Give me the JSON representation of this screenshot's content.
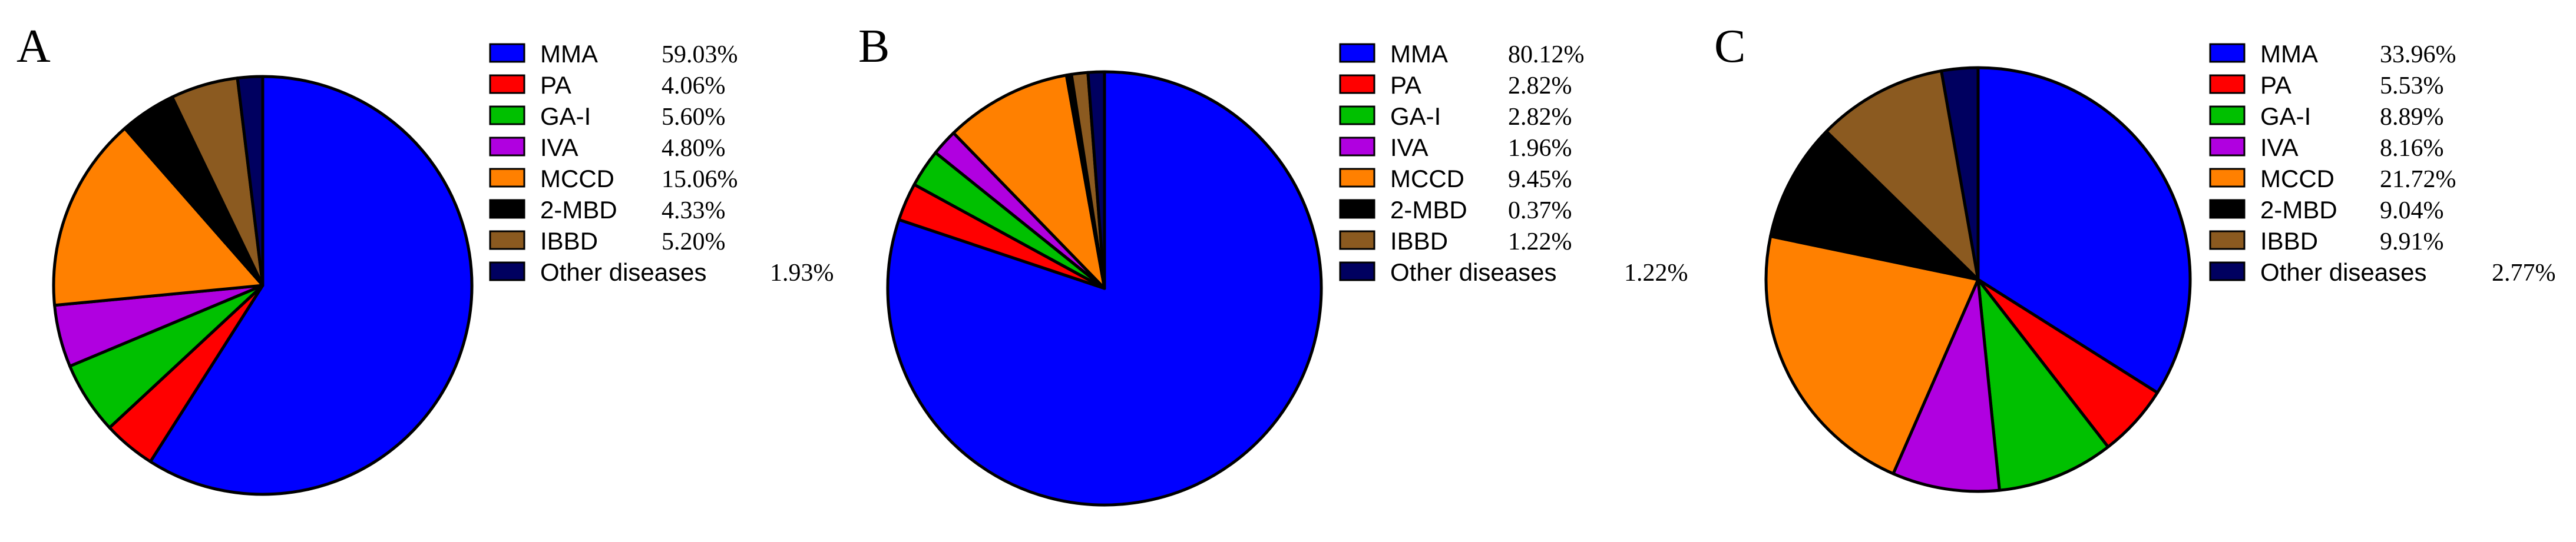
{
  "colors": {
    "MMA": "#0000ff",
    "PA": "#ff0000",
    "GA-I": "#00c000",
    "IVA": "#b000e0",
    "MCCD": "#ff8000",
    "2-MBD": "#000000",
    "IBBD": "#8b5a20",
    "Other diseases": "#000060"
  },
  "chart_data": [
    {
      "type": "pie",
      "panel_label": "A",
      "categories": [
        "MMA",
        "PA",
        "GA-I",
        "IVA",
        "MCCD",
        "2-MBD",
        "IBBD",
        "Other diseases"
      ],
      "values": [
        59.03,
        4.06,
        5.6,
        4.8,
        15.06,
        4.33,
        5.2,
        1.93
      ],
      "value_labels": [
        "59.03%",
        "4.06%",
        "5.60%",
        "4.80%",
        "15.06%",
        "4.33%",
        "5.20%",
        "1.93%"
      ],
      "start": "12 o'clock",
      "direction": "clockwise",
      "legend_position": "right"
    },
    {
      "type": "pie",
      "panel_label": "B",
      "categories": [
        "MMA",
        "PA",
        "GA-I",
        "IVA",
        "MCCD",
        "2-MBD",
        "IBBD",
        "Other diseases"
      ],
      "values": [
        80.12,
        2.82,
        2.82,
        1.96,
        9.45,
        0.37,
        1.22,
        1.22
      ],
      "value_labels": [
        "80.12%",
        "2.82%",
        "2.82%",
        "1.96%",
        "9.45%",
        "0.37%",
        "1.22%",
        "1.22%"
      ],
      "start": "12 o'clock",
      "direction": "clockwise",
      "legend_position": "right"
    },
    {
      "type": "pie",
      "panel_label": "C",
      "categories": [
        "MMA",
        "PA",
        "GA-I",
        "IVA",
        "MCCD",
        "2-MBD",
        "IBBD",
        "Other diseases"
      ],
      "values": [
        33.96,
        5.53,
        8.89,
        8.16,
        21.72,
        9.04,
        9.91,
        2.77
      ],
      "value_labels": [
        "33.96%",
        "5.53%",
        "8.89%",
        "8.16%",
        "21.72%",
        "9.04%",
        "9.91%",
        "2.77%"
      ],
      "start": "12 o'clock",
      "direction": "clockwise",
      "legend_position": "right"
    }
  ]
}
